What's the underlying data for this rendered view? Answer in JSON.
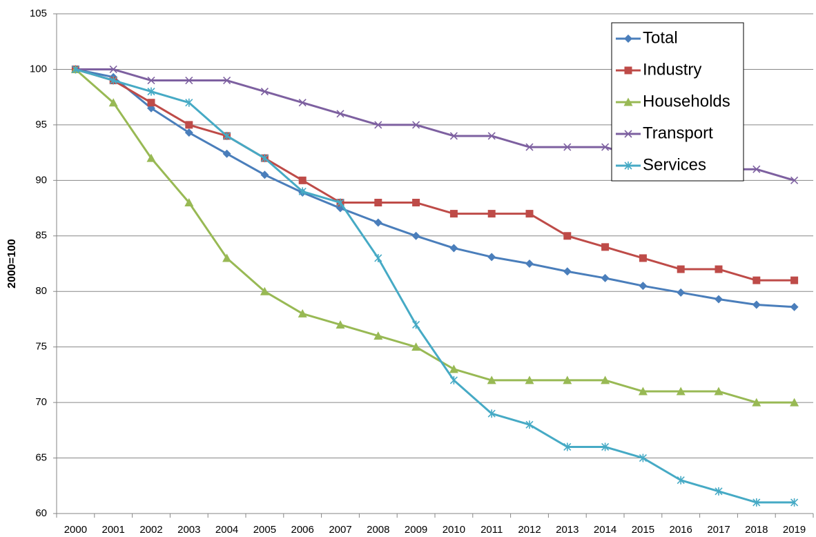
{
  "chart_data": {
    "type": "line",
    "ylabel": "2000=100",
    "categories": [
      "2000",
      "2001",
      "2002",
      "2003",
      "2004",
      "2005",
      "2006",
      "2007",
      "2008",
      "2009",
      "2010",
      "2011",
      "2012",
      "2013",
      "2014",
      "2015",
      "2016",
      "2017",
      "2018",
      "2019"
    ],
    "series": [
      {
        "name": "Total",
        "color": "#4a7ebb",
        "marker": "diamond",
        "values": [
          100,
          99.3,
          96.5,
          94.3,
          92.4,
          90.5,
          88.9,
          87.5,
          86.2,
          85,
          83.9,
          83.1,
          82.5,
          81.8,
          81.2,
          80.5,
          79.9,
          79.3,
          78.8,
          78.6
        ]
      },
      {
        "name": "Industry",
        "color": "#be4b48",
        "marker": "square",
        "values": [
          100,
          99,
          97,
          95,
          94,
          92,
          90,
          88,
          88,
          88,
          87,
          87,
          87,
          85,
          84,
          83,
          82,
          82,
          81,
          81
        ]
      },
      {
        "name": "Households",
        "color": "#98b954",
        "marker": "triangle",
        "values": [
          100,
          97,
          92,
          88,
          83,
          80,
          78,
          77,
          76,
          75,
          73,
          72,
          72,
          72,
          72,
          71,
          71,
          71,
          70,
          70
        ]
      },
      {
        "name": "Transport",
        "color": "#7d60a0",
        "marker": "x",
        "values": [
          100,
          100,
          99,
          99,
          99,
          98,
          97,
          96,
          95,
          95,
          94,
          94,
          93,
          93,
          93,
          92,
          92,
          91,
          91,
          90
        ]
      },
      {
        "name": "Services",
        "color": "#46aac5",
        "marker": "star",
        "values": [
          100,
          99,
          98,
          97,
          94,
          92,
          89,
          88,
          83,
          77,
          72,
          69,
          68,
          66,
          66,
          65,
          63,
          62,
          61,
          61
        ]
      }
    ],
    "ylim": [
      60,
      105
    ],
    "yticks": [
      60,
      65,
      70,
      75,
      80,
      85,
      90,
      95,
      100,
      105
    ],
    "grid": true,
    "legend": "top-right"
  }
}
